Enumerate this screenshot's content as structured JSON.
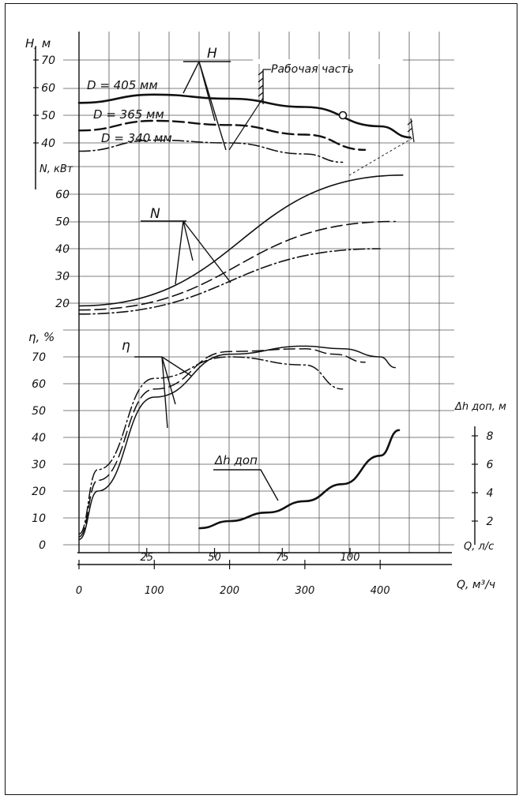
{
  "chart_data": {
    "type": "line",
    "x": {
      "label": "Q, м³/ч",
      "ticks": [
        0,
        100,
        200,
        300,
        400
      ]
    },
    "x_secondary": {
      "label": "Q, л/с",
      "ticks": [
        25,
        50,
        75,
        100
      ]
    },
    "grid": true,
    "panels": {
      "head": {
        "ylabel": "Н, м",
        "ylim": [
          35,
          75
        ],
        "yticks": [
          40,
          50,
          60,
          70
        ],
        "marker_label": "H",
        "working_label": "Рабочая часть",
        "series": [
          {
            "name": "D = 405 мм",
            "style": "solid",
            "x": [
              0,
              100,
              200,
              300,
              400,
              440
            ],
            "y": [
              54.5,
              57.5,
              56,
              53,
              46,
              42
            ]
          },
          {
            "name": "D = 365 мм",
            "style": "dashed",
            "x": [
              0,
              100,
              200,
              300,
              380
            ],
            "y": [
              44.5,
              48,
              46.5,
              43,
              37.5
            ]
          },
          {
            "name": "D = 340 мм",
            "style": "dashdot",
            "x": [
              0,
              100,
              200,
              300,
              350
            ],
            "y": [
              37,
              41,
              40,
              36,
              33
            ]
          }
        ]
      },
      "power": {
        "ylabel": "N, кВт",
        "ylim": [
          15,
          75
        ],
        "yticks": [
          20,
          30,
          40,
          50,
          60
        ],
        "marker_label": "N",
        "series": [
          {
            "name": "D = 405 мм",
            "style": "solid",
            "x": [
              0,
              430
            ],
            "y": [
              19,
              67
            ]
          },
          {
            "name": "D = 365 мм",
            "style": "dashed",
            "x": [
              0,
              420
            ],
            "y": [
              17.5,
              50
            ]
          },
          {
            "name": "D = 340 мм",
            "style": "dashdot",
            "x": [
              0,
              400
            ],
            "y": [
              16,
              40
            ]
          }
        ]
      },
      "efficiency": {
        "ylabel": "η, %",
        "ylim": [
          0,
          75
        ],
        "yticks": [
          0,
          10,
          20,
          30,
          40,
          50,
          60,
          70
        ],
        "marker_label": "η",
        "series": [
          {
            "name": "D = 405 мм",
            "style": "solid",
            "x": [
              0,
              25,
              100,
              200,
              300,
              350,
              400,
              420
            ],
            "y": [
              2,
              20,
              55,
              71,
              74,
              73,
              70,
              66
            ]
          },
          {
            "name": "D = 365 мм",
            "style": "dashed",
            "x": [
              0,
              25,
              100,
              200,
              300,
              340,
              380
            ],
            "y": [
              3,
              24,
              58,
              72,
              73,
              71,
              68
            ]
          },
          {
            "name": "D = 340 мм",
            "style": "dashdot",
            "x": [
              0,
              25,
              100,
              200,
              300,
              350
            ],
            "y": [
              4,
              28,
              62,
              70,
              67,
              58
            ]
          }
        ]
      },
      "npsh": {
        "ylabel": "Δh доп, м",
        "ylim": [
          0,
          9
        ],
        "yticks": [
          2,
          4,
          6,
          8
        ],
        "marker_label": "Δh доп",
        "series": [
          {
            "name": "Δh доп",
            "style": "solid",
            "x": [
              160,
              200,
              250,
              300,
              350,
              400,
              425
            ],
            "y": [
              1.5,
              2.0,
              2.6,
              3.4,
              4.6,
              6.6,
              8.4
            ]
          }
        ]
      }
    }
  }
}
